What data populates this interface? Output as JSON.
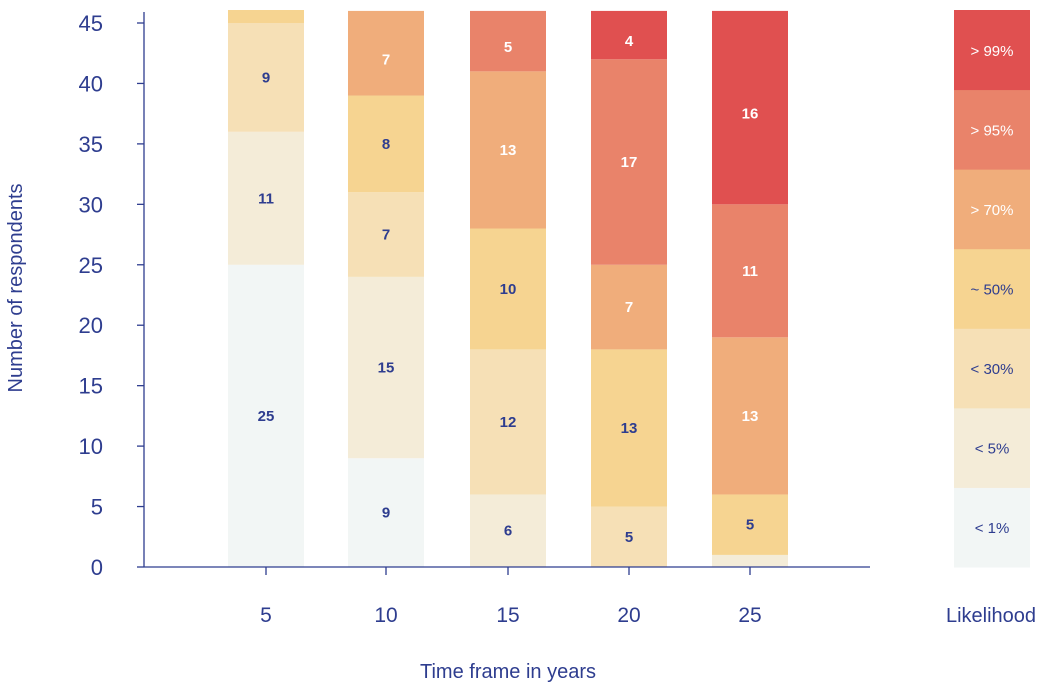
{
  "chart_data": {
    "type": "bar",
    "stacked": true,
    "title": "",
    "xlabel": "Time frame in years",
    "ylabel": "Number of respondents",
    "ylim": [
      0,
      45
    ],
    "yticks": [
      0,
      5,
      10,
      15,
      20,
      25,
      30,
      35,
      40,
      45
    ],
    "categories": [
      "5",
      "10",
      "15",
      "20",
      "25"
    ],
    "legend_title": "Likelihood",
    "legend_position": "right",
    "series": [
      {
        "name": "< 1%",
        "color": "#f2f6f5",
        "label_color": "#2e3d8f",
        "values": [
          25,
          9,
          0,
          0,
          0
        ]
      },
      {
        "name": "< 5%",
        "color": "#f4ecd8",
        "label_color": "#2e3d8f",
        "values": [
          11,
          15,
          6,
          0,
          1
        ]
      },
      {
        "name": "< 30%",
        "color": "#f6e0b6",
        "label_color": "#2e3d8f",
        "values": [
          9,
          7,
          12,
          5,
          0
        ]
      },
      {
        "name": "~ 50%",
        "color": "#f6d491",
        "label_color": "#2e3d8f",
        "values": [
          2,
          8,
          10,
          13,
          5
        ]
      },
      {
        "name": "> 70%",
        "color": "#f0ad7b",
        "label_color": "#ffffff",
        "values": [
          0,
          7,
          13,
          7,
          13
        ]
      },
      {
        "name": "> 95%",
        "color": "#e9836a",
        "label_color": "#ffffff",
        "values": [
          0,
          0,
          5,
          17,
          11
        ]
      },
      {
        "name": "> 99%",
        "color": "#e05050",
        "label_color": "#ffffff",
        "values": [
          0,
          0,
          0,
          4,
          16
        ]
      }
    ],
    "data_labels": [
      {
        "category": "5",
        "series": "< 1%",
        "text": "25"
      },
      {
        "category": "5",
        "series": "< 5%",
        "text": "11"
      },
      {
        "category": "5",
        "series": "< 30%",
        "text": "9"
      },
      {
        "category": "10",
        "series": "< 1%",
        "text": "9"
      },
      {
        "category": "10",
        "series": "< 5%",
        "text": "15"
      },
      {
        "category": "10",
        "series": "< 30%",
        "text": "7"
      },
      {
        "category": "10",
        "series": "~ 50%",
        "text": "8"
      },
      {
        "category": "10",
        "series": "> 70%",
        "text": "7"
      },
      {
        "category": "15",
        "series": "< 5%",
        "text": "6"
      },
      {
        "category": "15",
        "series": "< 30%",
        "text": "12"
      },
      {
        "category": "15",
        "series": "~ 50%",
        "text": "10"
      },
      {
        "category": "15",
        "series": "> 70%",
        "text": "13"
      },
      {
        "category": "15",
        "series": "> 95%",
        "text": "5"
      },
      {
        "category": "20",
        "series": "< 30%",
        "text": "5"
      },
      {
        "category": "20",
        "series": "~ 50%",
        "text": "13"
      },
      {
        "category": "20",
        "series": "> 70%",
        "text": "7"
      },
      {
        "category": "20",
        "series": "> 95%",
        "text": "17"
      },
      {
        "category": "20",
        "series": "> 99%",
        "text": "4"
      },
      {
        "category": "25",
        "series": "~ 50%",
        "text": "5"
      },
      {
        "category": "25",
        "series": "> 70%",
        "text": "13"
      },
      {
        "category": "25",
        "series": "> 95%",
        "text": "11"
      },
      {
        "category": "25",
        "series": "> 99%",
        "text": "16"
      }
    ],
    "colors": {
      "axis": "#2e3d8f"
    }
  }
}
